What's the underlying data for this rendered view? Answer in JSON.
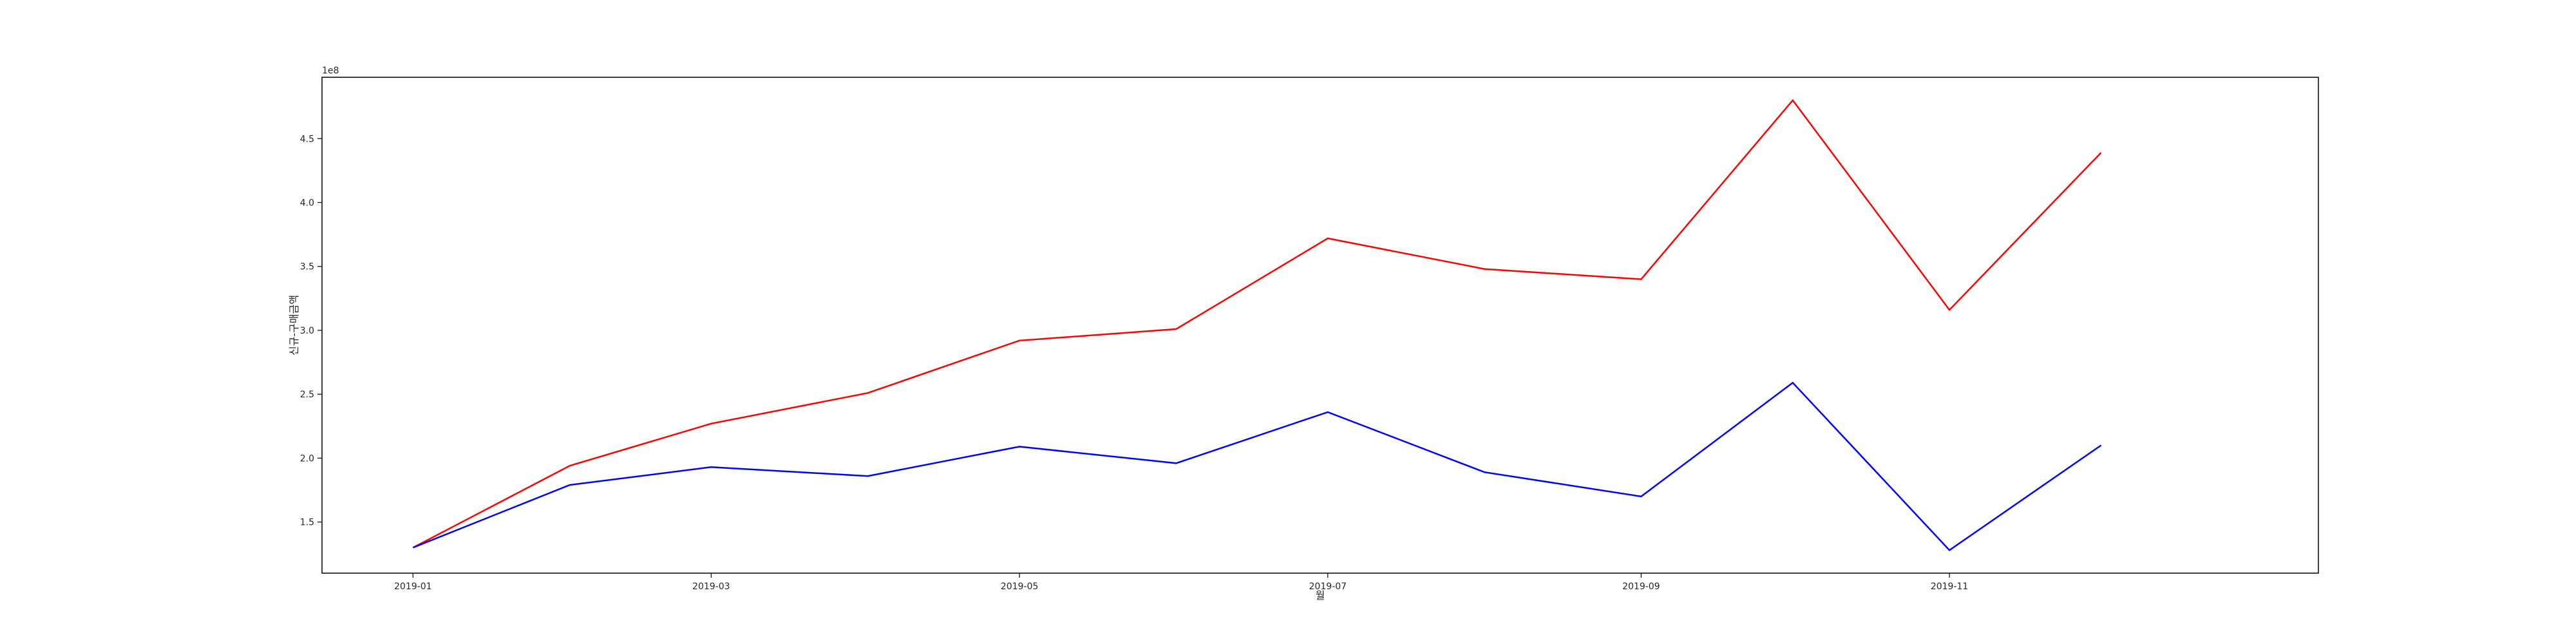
{
  "chart_data": {
    "type": "line",
    "x": [
      "2019-01",
      "2019-02",
      "2019-03",
      "2019-04",
      "2019-05",
      "2019-06",
      "2019-07",
      "2019-08",
      "2019-09",
      "2019-10",
      "2019-11",
      "2019-12"
    ],
    "x_tick_labels": [
      "2019-01",
      "2019-03",
      "2019-05",
      "2019-07",
      "2019-09",
      "2019-11"
    ],
    "series": [
      {
        "color": "#ff0000",
        "values": [
          1.3,
          1.94,
          2.27,
          2.51,
          2.92,
          3.01,
          3.72,
          3.48,
          3.4,
          4.8,
          3.16,
          4.39
        ]
      },
      {
        "color": "#0000ff",
        "values": [
          1.3,
          1.79,
          1.93,
          1.86,
          2.09,
          1.96,
          2.36,
          1.89,
          1.7,
          2.59,
          1.28,
          2.1
        ]
      }
    ],
    "y_tick_labels": [
      "1.5",
      "2.0",
      "2.5",
      "3.0",
      "3.5",
      "4.0",
      "4.5"
    ],
    "y_offset_label": "1e8",
    "xlabel": "월",
    "ylabel": "신규-구매금액",
    "xlim": [
      "2018-12-14",
      "2020-01-13"
    ],
    "ylim": [
      1.1,
      4.98
    ],
    "grid": false,
    "legend": false
  }
}
